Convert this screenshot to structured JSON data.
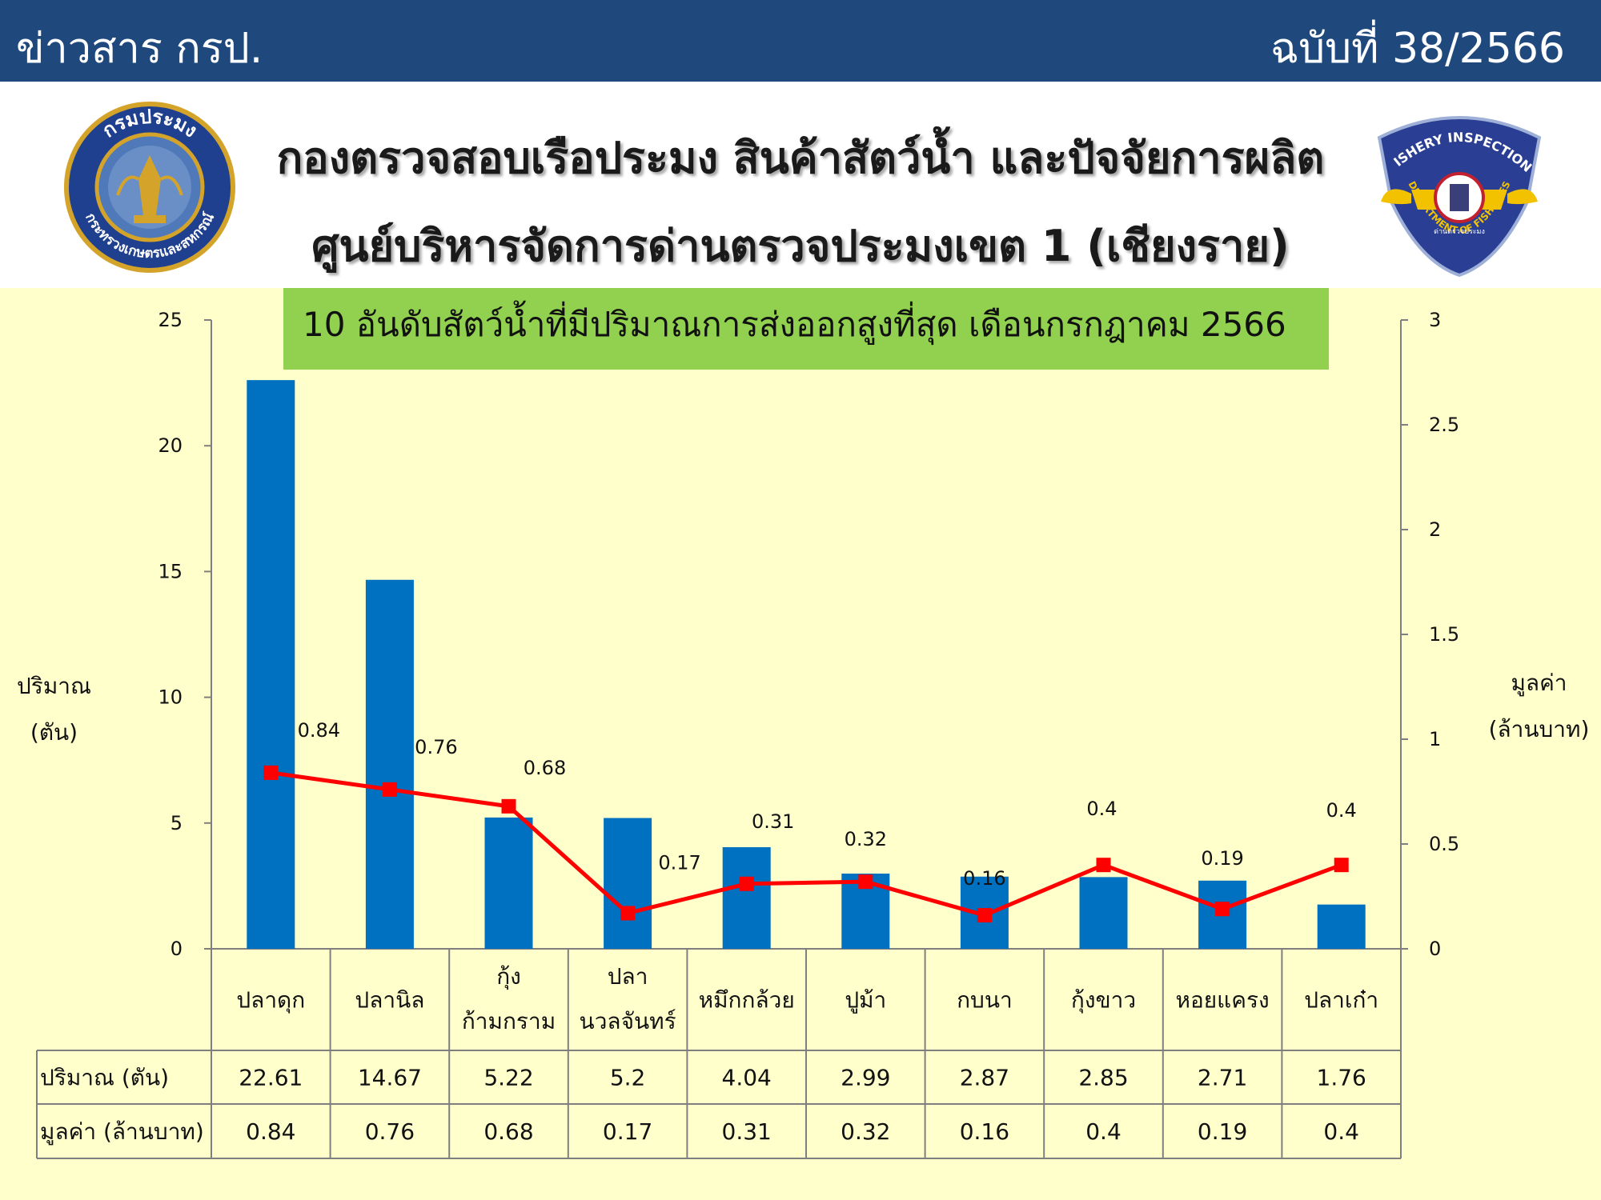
{
  "header": {
    "left_text": "ข่าวสาร กรป.",
    "right_text": "ฉบับที่ 38/2566"
  },
  "titles": {
    "line1": "กองตรวจสอบเรือประมง สินค้าสัตว์น้ำ และปัจจัยการผลิต",
    "line2": "ศูนย์บริหารจัดการด่านตรวจประมงเขต 1 (เชียงราย)"
  },
  "logos": {
    "left": {
      "ring_text_top": "กรมประมง",
      "ring_text_bottom": "กระทรวงเกษตรและสหกรณ์",
      "color_ring": "#1f3f8f",
      "color_gold": "#d4a32a"
    },
    "right": {
      "ring_text_top": "FISHERY INSPECTION",
      "ring_text_bottom": "DEPARTMENT OF FISHERIES",
      "center_text": "ด่านตรวจประมง",
      "color_shield": "#2a3f93",
      "color_wings": "#f2c200"
    }
  },
  "colors": {
    "bar": "#0070c0",
    "line": "#ff0000",
    "header_bg": "#1f497d",
    "plot_bg": "#ffffcc",
    "title_box": "#92d050"
  },
  "chart_data": {
    "type": "bar",
    "title": "10 อันดับสัตว์น้ำที่มีปริมาณการส่งออกสูงที่สุด เดือนกรกฎาคม 2566",
    "categories": [
      [
        "ปลาดุก"
      ],
      [
        "ปลานิล"
      ],
      [
        "กุ้ง",
        "ก้ามกราม"
      ],
      [
        "ปลา",
        "นวลจันทร์"
      ],
      [
        "หมึกกล้วย"
      ],
      [
        "ปูม้า"
      ],
      [
        "กบนา"
      ],
      [
        "กุ้งขาว"
      ],
      [
        "หอยแครง"
      ],
      [
        "ปลาเก๋า"
      ]
    ],
    "series": [
      {
        "name": "ปริมาณ (ตัน)",
        "type": "bar",
        "axis": "left",
        "values": [
          22.61,
          14.67,
          5.22,
          5.2,
          4.04,
          2.99,
          2.87,
          2.85,
          2.71,
          1.76
        ]
      },
      {
        "name": "มูลค่า (ล้านบาท)",
        "type": "line",
        "axis": "right",
        "values": [
          0.84,
          0.76,
          0.68,
          0.17,
          0.31,
          0.32,
          0.16,
          0.4,
          0.19,
          0.4
        ]
      }
    ],
    "data_labels": [
      "0.84",
      "0.76",
      "0.68",
      "0.17",
      "0.31",
      "0.32",
      "0.16",
      "0.4",
      "0.19",
      "0.4"
    ],
    "table_values_1": [
      "22.61",
      "14.67",
      "5.22",
      "5.2",
      "4.04",
      "2.99",
      "2.87",
      "2.85",
      "2.71",
      "1.76"
    ],
    "table_values_2": [
      "0.84",
      "0.76",
      "0.68",
      "0.17",
      "0.31",
      "0.32",
      "0.16",
      "0.4",
      "0.19",
      "0.4"
    ],
    "ylabel_left": [
      "ปริมาณ",
      "(ตัน)"
    ],
    "ylabel_right": [
      "มูลค่า",
      "(ล้านบาท)"
    ],
    "ylim_left": [
      0,
      25
    ],
    "yticks_left": [
      "0",
      "5",
      "10",
      "15",
      "20",
      "25"
    ],
    "ylim_right": [
      0,
      3
    ],
    "yticks_right": [
      "0",
      "0.5",
      "1",
      "1.5",
      "2",
      "2.5",
      "3"
    ],
    "grid": false,
    "legend": "data table below chart"
  }
}
